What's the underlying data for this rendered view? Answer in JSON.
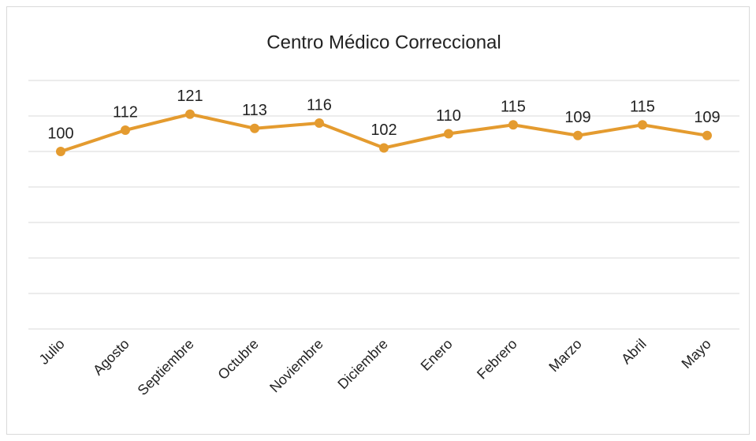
{
  "chart_data": {
    "type": "line",
    "title": "Centro Médico Correccional",
    "categories": [
      "Julio",
      "Agosto",
      "Septiembre",
      "Octubre",
      "Noviembre",
      "Diciembre",
      "Enero",
      "Febrero",
      "Marzo",
      "Abril",
      "Mayo"
    ],
    "values": [
      100,
      112,
      121,
      113,
      116,
      102,
      110,
      115,
      109,
      115,
      109
    ],
    "color": "#e49b2f",
    "ylim": [
      0,
      140
    ],
    "yticks": [
      0,
      20,
      40,
      60,
      80,
      100,
      120,
      140
    ],
    "grid": true
  }
}
